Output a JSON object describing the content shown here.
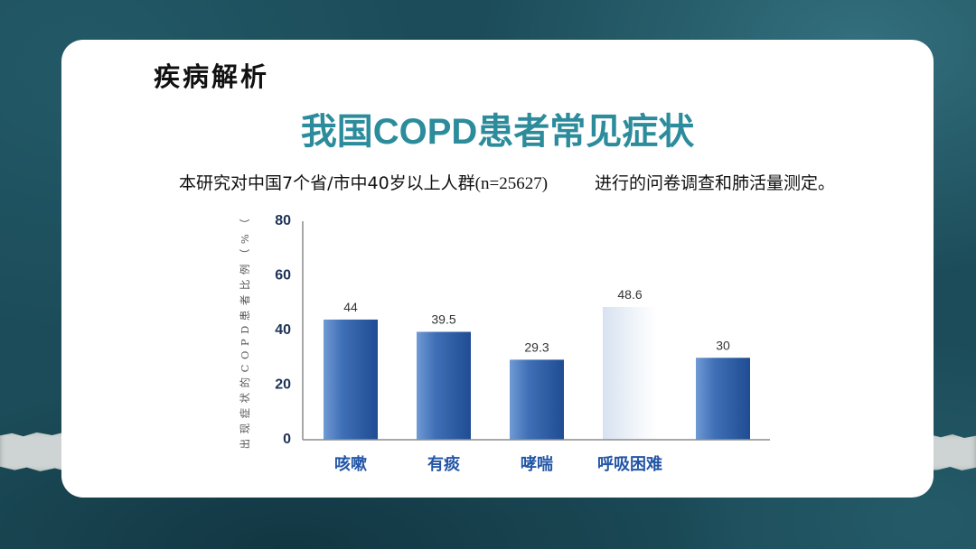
{
  "slide": {
    "section_title": "疾病解析",
    "title": "我国COPD患者常见症状",
    "subtitle_part1": "本研究对中国7个省/市中40岁以上人群",
    "subtitle_n": "(n=25627)",
    "subtitle_part2": "进行的问卷调查和肺活量测定。"
  },
  "colors": {
    "background": "#1c4c59",
    "card": "#ffffff",
    "title": "#2c8c9c",
    "category_label": "#2356a6",
    "tick_label": "#1e3358",
    "value_label": "#333333",
    "axis": "#8c8c8c",
    "bar_light": "#6f9ad4",
    "bar_mid": "#3f6fb6",
    "bar_dark": "#1f4c92",
    "highlight_bar_left": "#d7e1f0",
    "highlight_bar_right": "#ffffff"
  },
  "chart_data": {
    "type": "bar",
    "categories": [
      "咳嗽",
      "有痰",
      "哮喘",
      "呼吸困难",
      ""
    ],
    "values": [
      44,
      39.5,
      29.3,
      48.6,
      30
    ],
    "ylabel": "出现症状的COPD患者比例（%（",
    "xlabel": "",
    "ylim": [
      0,
      80
    ],
    "yticks": [
      0,
      20,
      40,
      60,
      80
    ],
    "grid": false,
    "legend": "none",
    "highlight_index": 3
  }
}
